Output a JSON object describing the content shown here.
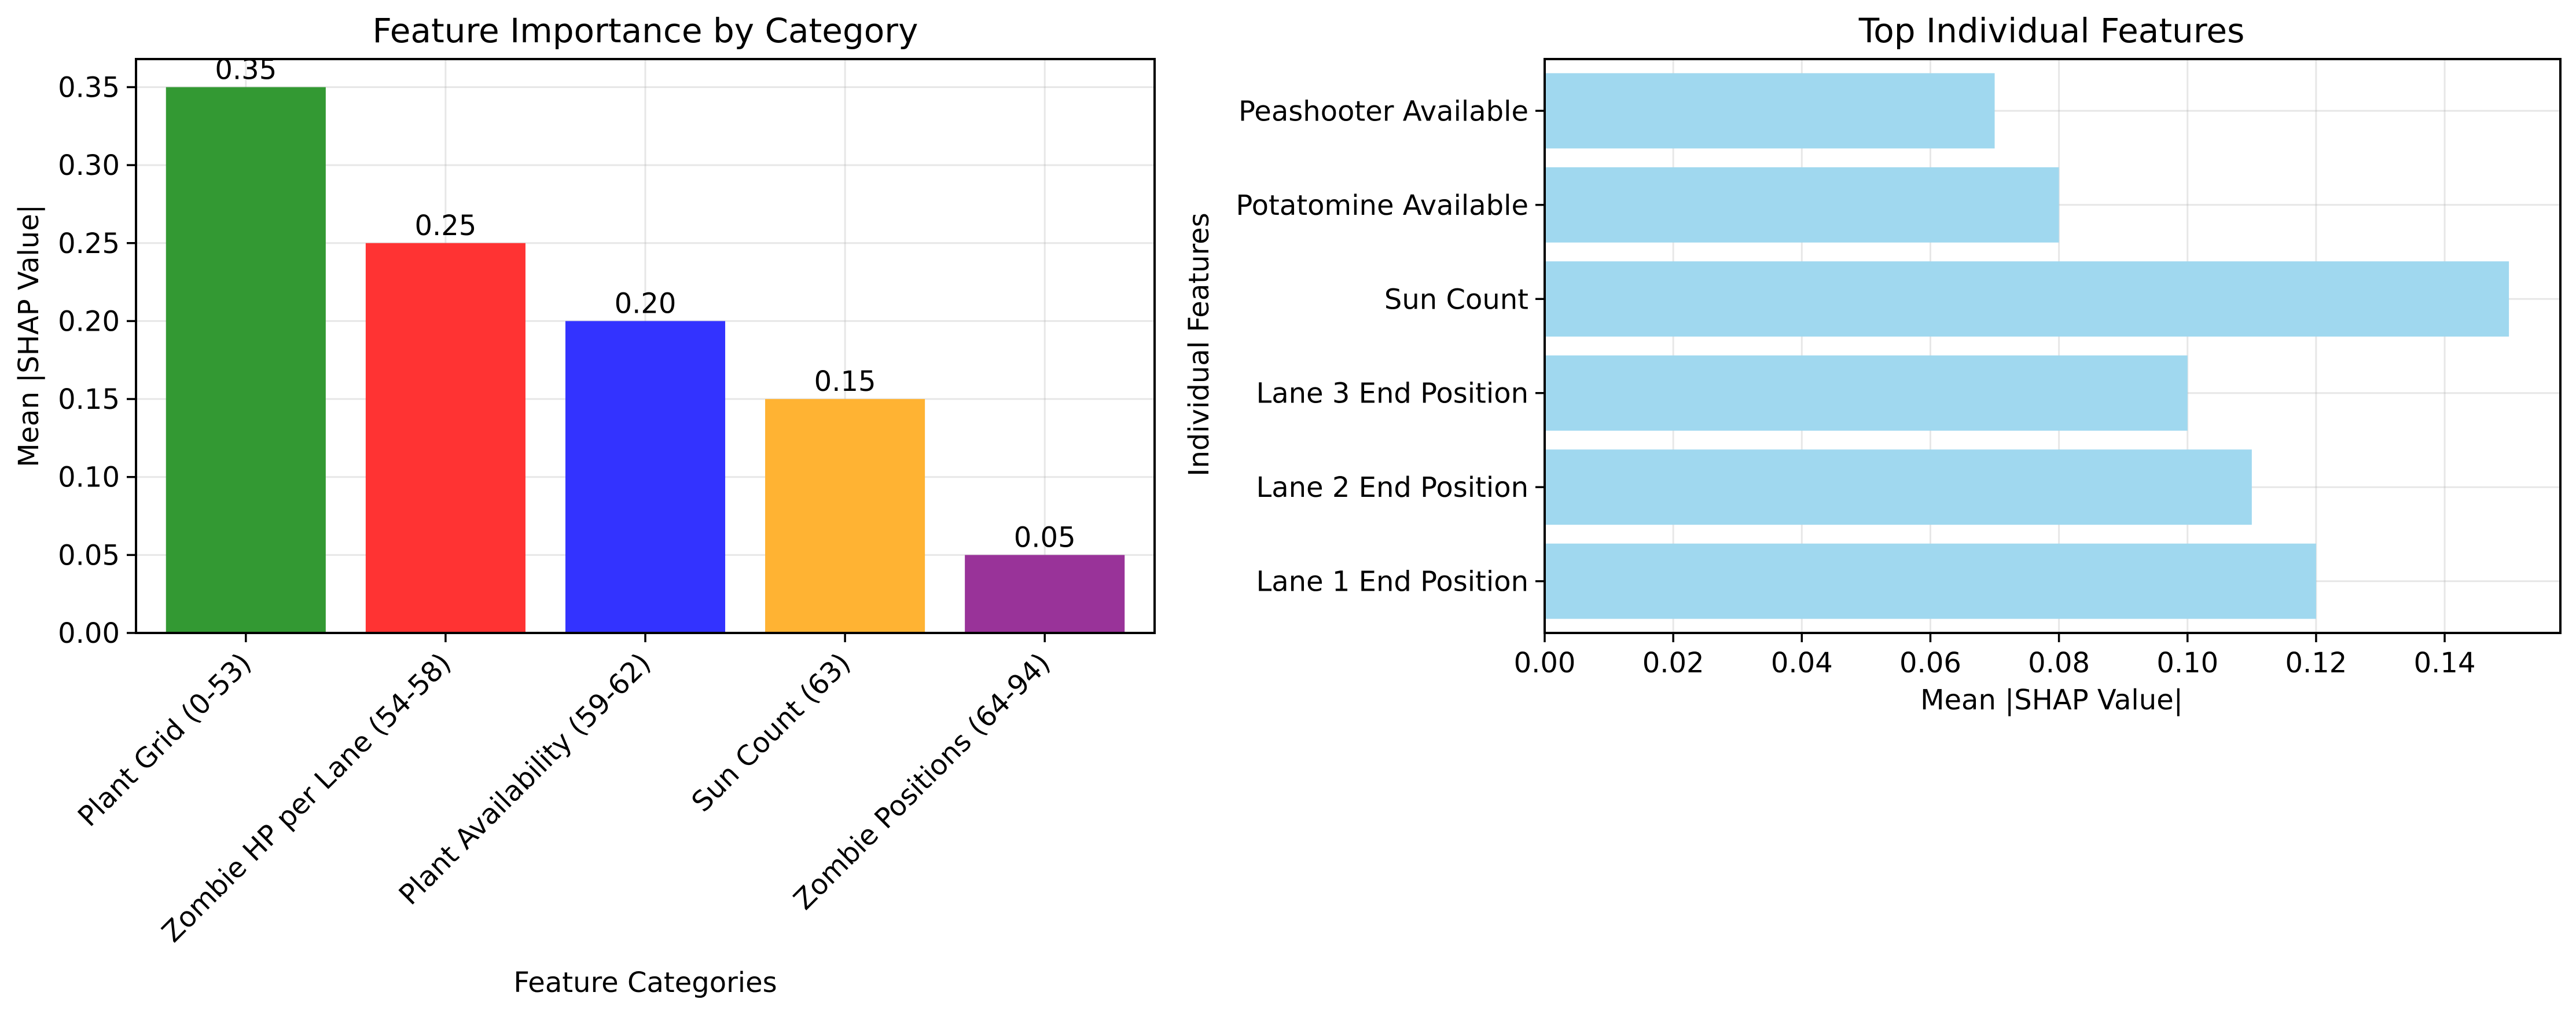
{
  "chart_data": [
    {
      "type": "bar",
      "title": "Feature Importance by Category",
      "xlabel": "Feature Categories",
      "ylabel": "Mean |SHAP Value|",
      "categories": [
        "Plant Grid (0-53)",
        "Zombie HP per Lane (54-58)",
        "Plant Availability (59-62)",
        "Sun Count (63)",
        "Zombie Positions (64-94)"
      ],
      "values": [
        0.35,
        0.25,
        0.2,
        0.15,
        0.05
      ],
      "value_labels": [
        "0.35",
        "0.25",
        "0.20",
        "0.15",
        "0.05"
      ],
      "colors": [
        "#339933",
        "#ff3333",
        "#3333ff",
        "#ffb333",
        "#993399"
      ],
      "ylim": [
        0,
        0.368
      ],
      "yticks": [
        0,
        0.05,
        0.1,
        0.15,
        0.2,
        0.25,
        0.3,
        0.35
      ],
      "ytick_labels": [
        "0.00",
        "0.05",
        "0.10",
        "0.15",
        "0.20",
        "0.25",
        "0.30",
        "0.35"
      ],
      "grid": true
    },
    {
      "type": "bar",
      "orientation": "horizontal",
      "title": "Top Individual Features",
      "xlabel": "Mean |SHAP Value|",
      "ylabel": "Individual Features",
      "categories": [
        "Lane 1 End Position",
        "Lane 2 End Position",
        "Lane 3 End Position",
        "Sun Count",
        "Potatomine Available",
        "Peashooter Available"
      ],
      "values": [
        0.12,
        0.11,
        0.1,
        0.15,
        0.08,
        0.07
      ],
      "color": "#a0d8ef",
      "xlim": [
        0,
        0.158
      ],
      "xticks": [
        0,
        0.02,
        0.04,
        0.06,
        0.08,
        0.1,
        0.12,
        0.14
      ],
      "xtick_labels": [
        "0.00",
        "0.02",
        "0.04",
        "0.06",
        "0.08",
        "0.10",
        "0.12",
        "0.14"
      ],
      "grid": true
    }
  ]
}
